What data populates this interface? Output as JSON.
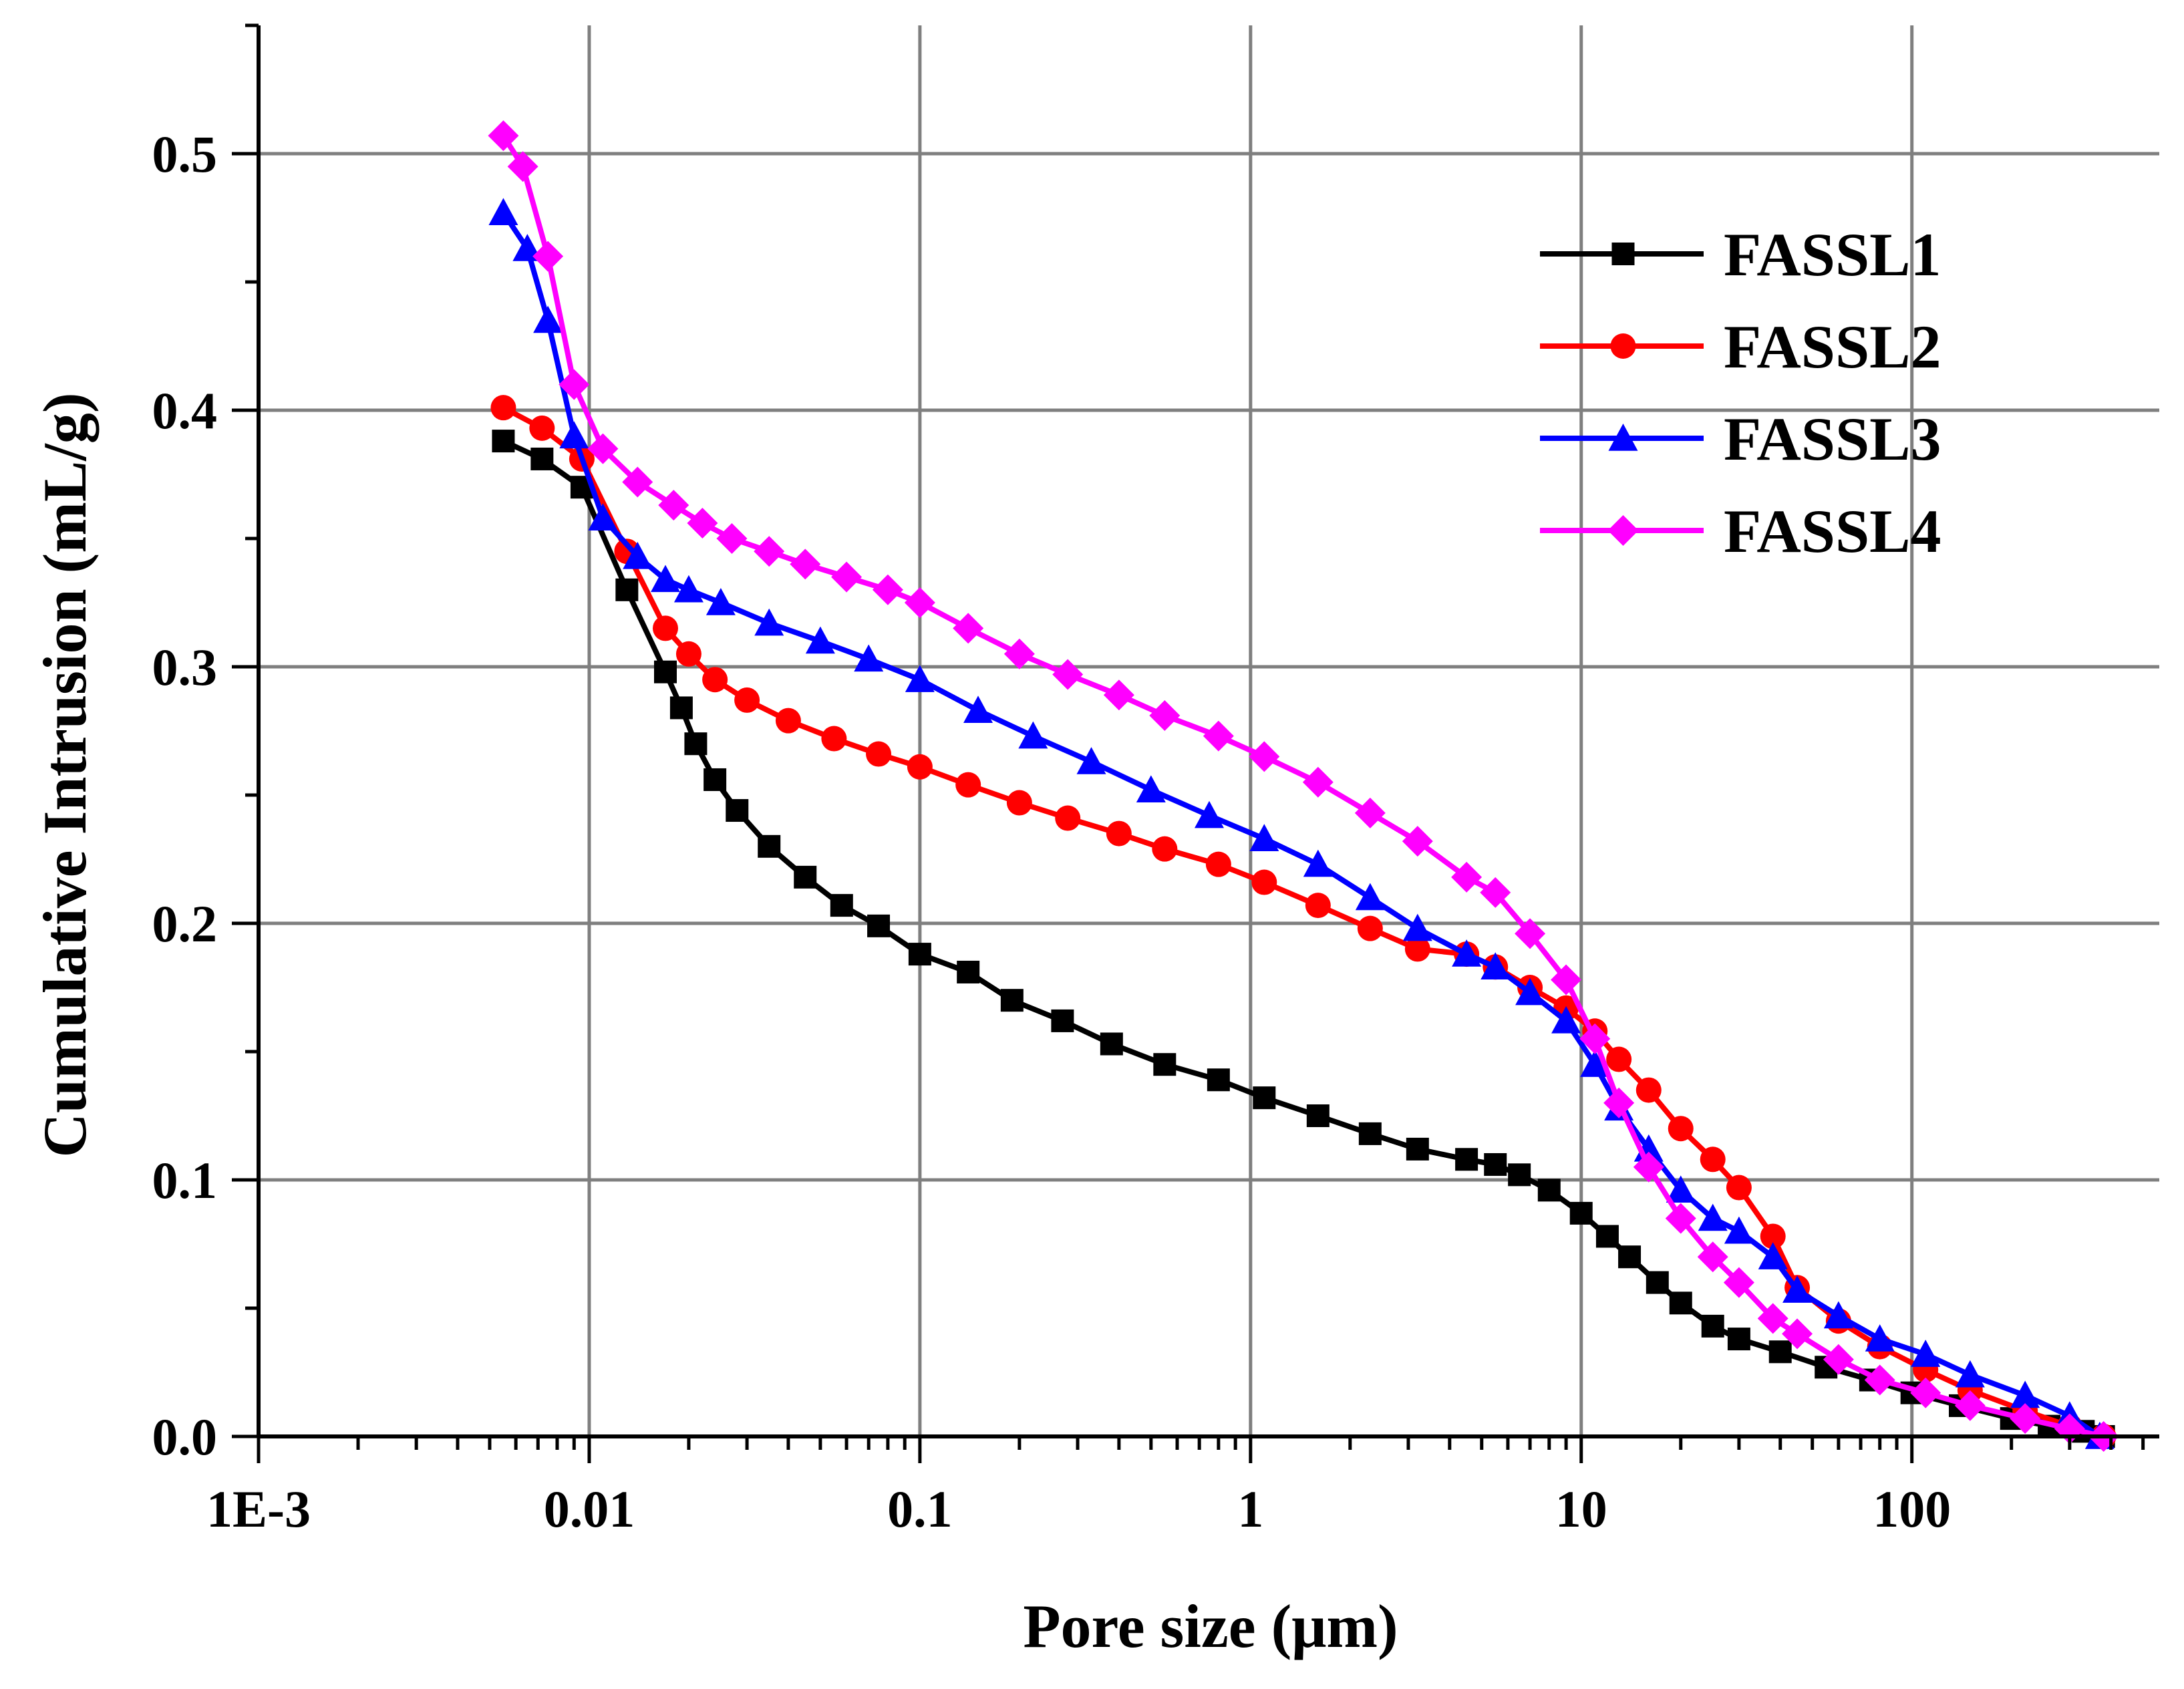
{
  "chart_data": {
    "type": "line",
    "title": "",
    "xlabel": "Pore size (μm)",
    "ylabel": "Cumulative Intrusion (mL/g)",
    "xscale": "log",
    "xlim": [
      0.001,
      560
    ],
    "ylim": [
      0,
      0.55
    ],
    "grid": true,
    "legend_position": "top-right",
    "x_ticks": [
      {
        "value": 0.001,
        "label": "1E-3"
      },
      {
        "value": 0.01,
        "label": "0.01"
      },
      {
        "value": 0.1,
        "label": "0.1"
      },
      {
        "value": 1,
        "label": "1"
      },
      {
        "value": 10,
        "label": "10"
      },
      {
        "value": 100,
        "label": "100"
      }
    ],
    "y_ticks": [
      {
        "value": 0.0,
        "label": "0.0"
      },
      {
        "value": 0.1,
        "label": "0.1"
      },
      {
        "value": 0.2,
        "label": "0.2"
      },
      {
        "value": 0.3,
        "label": "0.3"
      },
      {
        "value": 0.4,
        "label": "0.4"
      },
      {
        "value": 0.5,
        "label": "0.5"
      }
    ],
    "series": [
      {
        "name": "FASSL1",
        "color": "#000000",
        "marker": "square",
        "x": [
          0.0055,
          0.0072,
          0.0095,
          0.013,
          0.017,
          0.019,
          0.021,
          0.024,
          0.028,
          0.035,
          0.045,
          0.058,
          0.075,
          0.1,
          0.14,
          0.19,
          0.27,
          0.38,
          0.55,
          0.8,
          1.1,
          1.6,
          2.3,
          3.2,
          4.5,
          5.5,
          6.5,
          8,
          10,
          12,
          14,
          17,
          20,
          25,
          30,
          40,
          55,
          75,
          100,
          140,
          200,
          260,
          330,
          380
        ],
        "y": [
          0.388,
          0.381,
          0.37,
          0.33,
          0.298,
          0.284,
          0.27,
          0.256,
          0.244,
          0.23,
          0.218,
          0.207,
          0.199,
          0.188,
          0.181,
          0.17,
          0.162,
          0.153,
          0.145,
          0.139,
          0.132,
          0.125,
          0.118,
          0.112,
          0.108,
          0.106,
          0.102,
          0.096,
          0.087,
          0.078,
          0.07,
          0.06,
          0.052,
          0.043,
          0.038,
          0.033,
          0.027,
          0.022,
          0.017,
          0.012,
          0.007,
          0.004,
          0.002,
          0.0
        ]
      },
      {
        "name": "FASSL2",
        "color": "#ff0000",
        "marker": "circle",
        "x": [
          0.0055,
          0.0072,
          0.0095,
          0.013,
          0.017,
          0.02,
          0.024,
          0.03,
          0.04,
          0.055,
          0.075,
          0.1,
          0.14,
          0.2,
          0.28,
          0.4,
          0.55,
          0.8,
          1.1,
          1.6,
          2.3,
          3.2,
          4.5,
          5.5,
          7,
          9,
          11,
          13,
          16,
          20,
          25,
          30,
          38,
          45,
          60,
          80,
          110,
          150,
          220,
          300,
          380
        ],
        "y": [
          0.401,
          0.393,
          0.381,
          0.345,
          0.315,
          0.305,
          0.295,
          0.287,
          0.279,
          0.272,
          0.266,
          0.261,
          0.254,
          0.247,
          0.241,
          0.235,
          0.229,
          0.223,
          0.216,
          0.207,
          0.198,
          0.19,
          0.188,
          0.183,
          0.175,
          0.167,
          0.158,
          0.147,
          0.135,
          0.12,
          0.108,
          0.097,
          0.078,
          0.058,
          0.045,
          0.035,
          0.026,
          0.018,
          0.01,
          0.004,
          0.0
        ]
      },
      {
        "name": "FASSL3",
        "color": "#0000ff",
        "marker": "triangle",
        "x": [
          0.0055,
          0.0065,
          0.0075,
          0.009,
          0.011,
          0.014,
          0.017,
          0.02,
          0.025,
          0.035,
          0.05,
          0.07,
          0.1,
          0.15,
          0.22,
          0.33,
          0.5,
          0.75,
          1.1,
          1.6,
          2.3,
          3.2,
          4.5,
          5.5,
          7,
          9,
          11,
          13,
          16,
          20,
          25,
          30,
          38,
          45,
          60,
          80,
          110,
          150,
          220,
          300,
          370
        ],
        "y": [
          0.477,
          0.463,
          0.435,
          0.39,
          0.358,
          0.343,
          0.334,
          0.33,
          0.325,
          0.317,
          0.31,
          0.303,
          0.295,
          0.283,
          0.273,
          0.263,
          0.252,
          0.242,
          0.233,
          0.223,
          0.21,
          0.198,
          0.188,
          0.183,
          0.173,
          0.162,
          0.145,
          0.128,
          0.112,
          0.096,
          0.085,
          0.08,
          0.07,
          0.057,
          0.047,
          0.038,
          0.032,
          0.024,
          0.016,
          0.008,
          0.0
        ]
      },
      {
        "name": "FASSL4",
        "color": "#ff00ff",
        "marker": "diamond",
        "x": [
          0.0055,
          0.0063,
          0.0075,
          0.009,
          0.011,
          0.014,
          0.018,
          0.022,
          0.027,
          0.035,
          0.045,
          0.06,
          0.08,
          0.1,
          0.14,
          0.2,
          0.28,
          0.4,
          0.55,
          0.8,
          1.1,
          1.6,
          2.3,
          3.2,
          4.5,
          5.5,
          7,
          9,
          11,
          13,
          16,
          20,
          25,
          30,
          38,
          45,
          60,
          80,
          110,
          150,
          220,
          300,
          380
        ],
        "y": [
          0.507,
          0.495,
          0.46,
          0.41,
          0.385,
          0.372,
          0.363,
          0.356,
          0.35,
          0.345,
          0.34,
          0.335,
          0.33,
          0.325,
          0.315,
          0.305,
          0.297,
          0.289,
          0.281,
          0.273,
          0.265,
          0.255,
          0.243,
          0.232,
          0.218,
          0.212,
          0.196,
          0.178,
          0.155,
          0.13,
          0.105,
          0.085,
          0.07,
          0.06,
          0.046,
          0.04,
          0.03,
          0.022,
          0.017,
          0.012,
          0.007,
          0.003,
          0.0
        ]
      }
    ]
  }
}
